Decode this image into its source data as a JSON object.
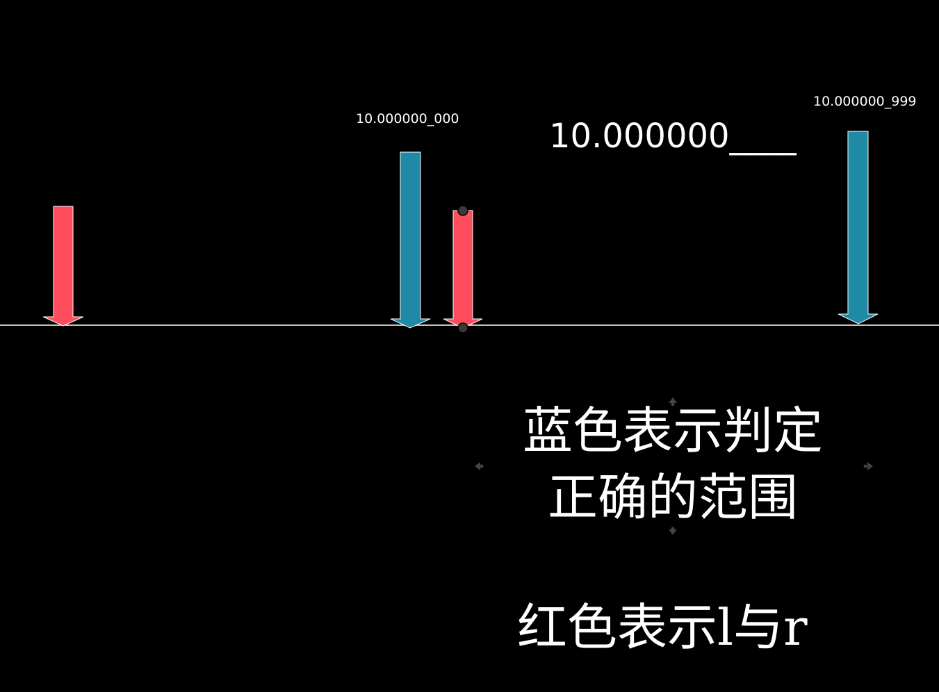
{
  "colors": {
    "background": "#000000",
    "baseline": "#ffffff",
    "red_arrow": "#ff4d5e",
    "blue_arrow": "#1e8aa6",
    "handle": "#3a3a3a"
  },
  "labels": {
    "left_blue": "10.000000_000",
    "right_blue": "10.000000_999",
    "middle_value": "10.000000____"
  },
  "caption": {
    "line1": "蓝色表示判定",
    "line2": "正确的范围",
    "line3_prefix": "红色表示",
    "line3_l": "l",
    "line3_mid": "与",
    "line3_r": "r"
  },
  "arrows": [
    {
      "id": "red-left",
      "color_key": "red_arrow"
    },
    {
      "id": "blue-left",
      "color_key": "blue_arrow"
    },
    {
      "id": "red-mid",
      "color_key": "red_arrow"
    },
    {
      "id": "blue-right",
      "color_key": "blue_arrow"
    }
  ]
}
